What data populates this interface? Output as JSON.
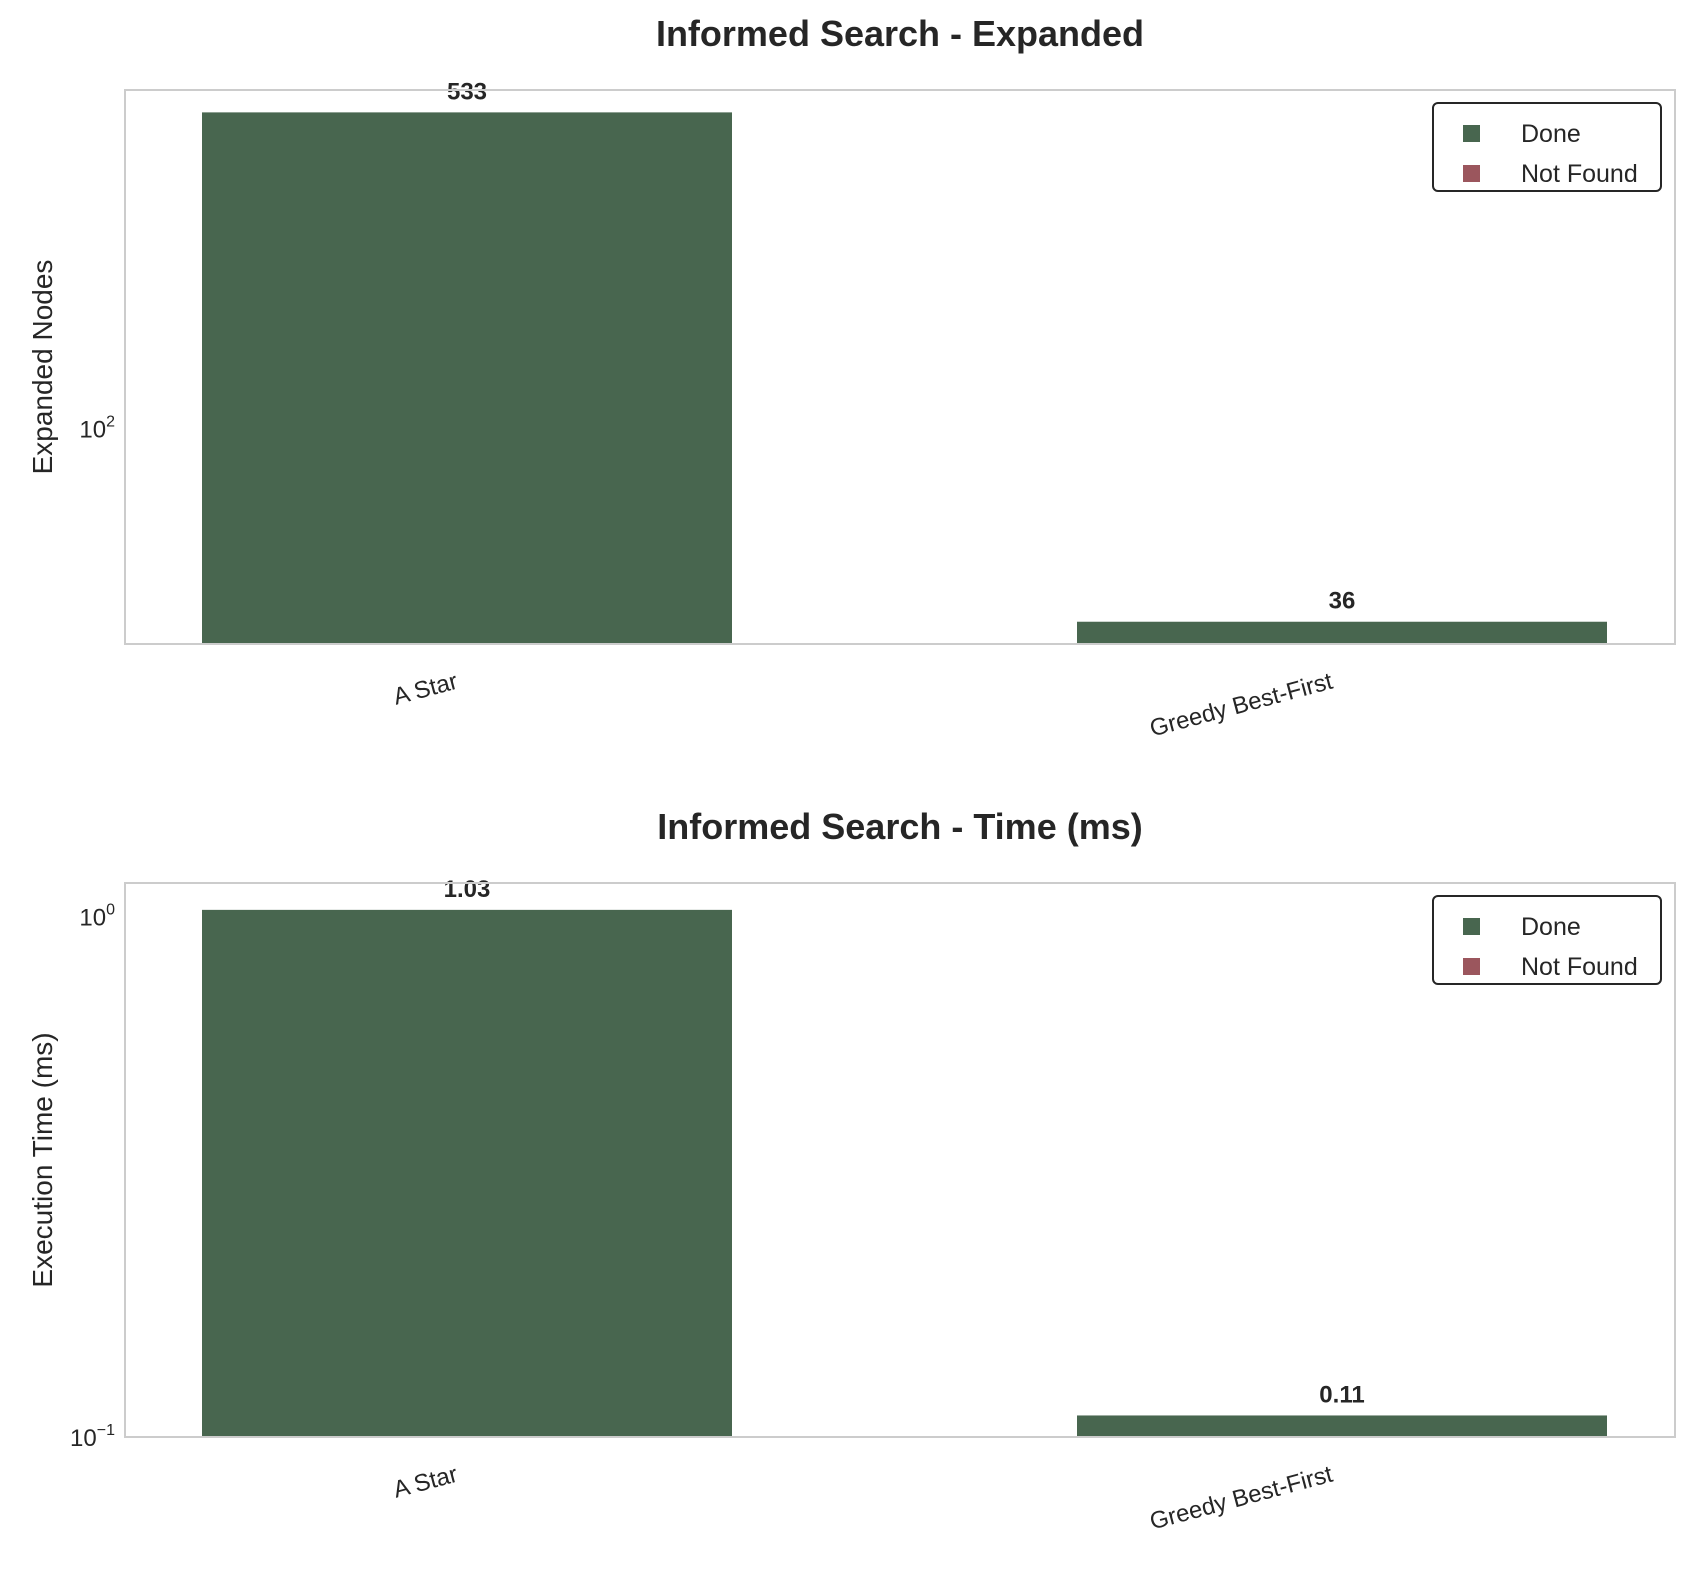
{
  "chart_data": [
    {
      "type": "bar",
      "title": "Informed Search - Expanded",
      "xlabel": "",
      "ylabel": "Expanded Nodes",
      "yscale": "log",
      "ylim": [
        32,
        600
      ],
      "categories": [
        "A Star",
        "Greedy Best-First"
      ],
      "values": [
        533,
        36
      ],
      "value_labels": [
        "533",
        "36"
      ],
      "statuses": [
        "Done",
        "Done"
      ],
      "ticks": [
        {
          "value": 100,
          "base": "10",
          "exp": "2"
        }
      ],
      "grid": false,
      "legend": {
        "position": "top-right",
        "entries": [
          {
            "label": "Done",
            "color": "#48664f"
          },
          {
            "label": "Not Found",
            "color": "#9b565d"
          }
        ]
      }
    },
    {
      "type": "bar",
      "title": "Informed Search - Time (ms)",
      "xlabel": "",
      "ylabel": "Execution Time (ms)",
      "yscale": "log",
      "ylim": [
        0.1,
        1.16
      ],
      "categories": [
        "A Star",
        "Greedy Best-First"
      ],
      "values": [
        1.03,
        0.11
      ],
      "value_labels": [
        "1.03",
        "0.11"
      ],
      "statuses": [
        "Done",
        "Done"
      ],
      "ticks": [
        {
          "value": 1,
          "base": "10",
          "exp": "0"
        },
        {
          "value": 0.1,
          "base": "10",
          "exp": "−1"
        }
      ],
      "grid": false,
      "legend": {
        "position": "top-right",
        "entries": [
          {
            "label": "Done",
            "color": "#48664f"
          },
          {
            "label": "Not Found",
            "color": "#9b565d"
          }
        ]
      }
    }
  ],
  "colors": {
    "done": "#48664f",
    "not_found": "#9b565d",
    "frame": "#cccccc",
    "text": "#262626"
  }
}
